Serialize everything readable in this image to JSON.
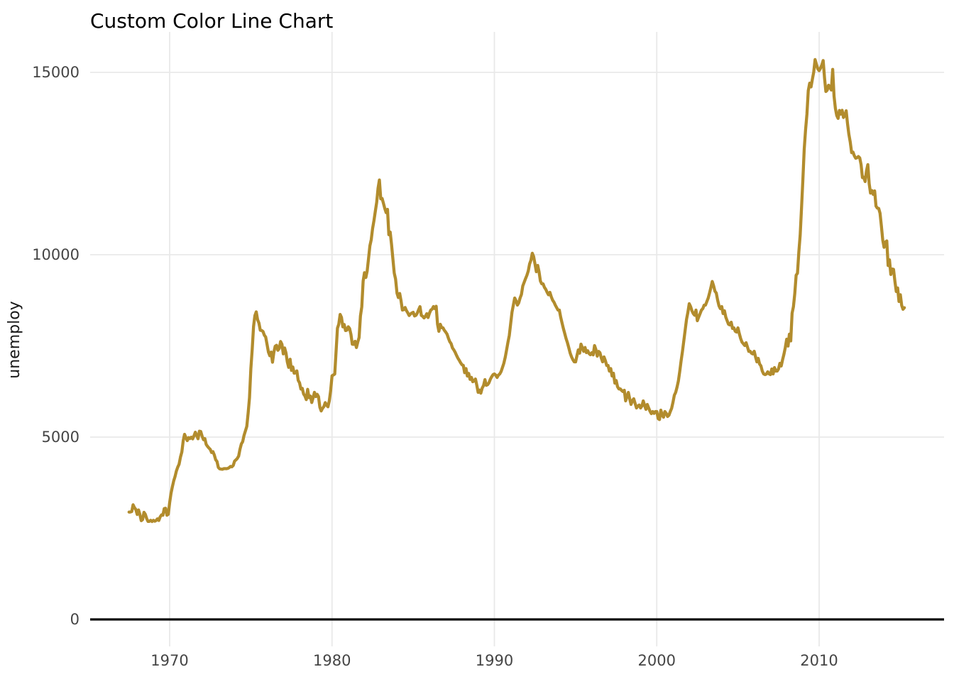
{
  "chart_data": {
    "type": "line",
    "title": "Custom Color Line Chart",
    "xlabel": "",
    "ylabel": "unemploy",
    "legend": "none",
    "grid": "major-only",
    "x_ticks": [
      1970,
      1980,
      1990,
      2000,
      2010
    ],
    "y_ticks": [
      0,
      5000,
      10000,
      15000
    ],
    "x_range_years": [
      1965.1,
      2017.6
    ],
    "y_range": [
      -760,
      16120
    ],
    "colors": {
      "line": "#B28C2D",
      "zero_line": "#0b0b0b",
      "gridline": "#E9E9E9",
      "tick_label": "#454545",
      "title": "#000000",
      "axis_title": "#1a1a1a",
      "background": "#ffffff"
    },
    "series": [
      {
        "name": "unemploy",
        "start_year": 1967,
        "start_month": 7,
        "frequency": "monthly",
        "values": [
          2944,
          2945,
          2958,
          3143,
          3066,
          3018,
          2878,
          3001,
          2877,
          2709,
          2740,
          2938,
          2883,
          2768,
          2686,
          2689,
          2715,
          2685,
          2718,
          2692,
          2712,
          2758,
          2713,
          2816,
          2868,
          2856,
          3040,
          3049,
          2856,
          2884,
          3201,
          3453,
          3635,
          3797,
          3919,
          4071,
          4175,
          4256,
          4456,
          4591,
          4898,
          5076,
          4986,
          4903,
          4987,
          4959,
          4996,
          4949,
          5035,
          5134,
          5042,
          4954,
          5161,
          5154,
          5019,
          4928,
          4959,
          4798,
          4746,
          4700,
          4663,
          4575,
          4602,
          4510,
          4381,
          4331,
          4167,
          4128,
          4122,
          4116,
          4134,
          4137,
          4133,
          4142,
          4164,
          4196,
          4184,
          4222,
          4342,
          4376,
          4415,
          4479,
          4667,
          4811,
          4876,
          5047,
          5173,
          5294,
          5662,
          6080,
          6873,
          7402,
          8031,
          8330,
          8433,
          8220,
          8127,
          7928,
          7923,
          7897,
          7794,
          7744,
          7534,
          7326,
          7230,
          7330,
          7053,
          7322,
          7490,
          7518,
          7380,
          7430,
          7620,
          7545,
          7280,
          7443,
          7307,
          7059,
          6911,
          7134,
          6829,
          6925,
          6751,
          6763,
          6815,
          6556,
          6489,
          6318,
          6337,
          6180,
          6127,
          6028,
          6309,
          6080,
          6125,
          5947,
          6077,
          6228,
          6109,
          6173,
          6109,
          5819,
          5716,
          5789,
          5836,
          5946,
          5880,
          5830,
          5993,
          6270,
          6683,
          6702,
          6729,
          7358,
          7984,
          8098,
          8363,
          8281,
          8021,
          8088,
          7921,
          7931,
          8025,
          7978,
          7818,
          7546,
          7541,
          7626,
          7455,
          7603,
          7731,
          8321,
          8573,
          9278,
          9507,
          9376,
          9556,
          9897,
          10244,
          10413,
          10718,
          10931,
          11196,
          11438,
          11823,
          12051,
          11534,
          11545,
          11408,
          11268,
          11154,
          11246,
          10548,
          10623,
          10282,
          9887,
          9499,
          9331,
          8945,
          8827,
          8937,
          8738,
          8483,
          8495,
          8555,
          8467,
          8406,
          8333,
          8375,
          8402,
          8423,
          8321,
          8339,
          8395,
          8491,
          8575,
          8336,
          8311,
          8266,
          8308,
          8383,
          8278,
          8395,
          8482,
          8510,
          8580,
          8521,
          8588,
          8093,
          7899,
          8093,
          8000,
          7996,
          7927,
          7879,
          7822,
          7712,
          7616,
          7565,
          7445,
          7392,
          7326,
          7244,
          7168,
          7108,
          7040,
          6983,
          6965,
          6765,
          6880,
          6673,
          6745,
          6582,
          6639,
          6518,
          6538,
          6593,
          6425,
          6226,
          6290,
          6205,
          6342,
          6412,
          6576,
          6420,
          6435,
          6491,
          6585,
          6656,
          6712,
          6731,
          6700,
          6634,
          6700,
          6731,
          6800,
          6910,
          7023,
          7190,
          7392,
          7600,
          7786,
          8106,
          8424,
          8618,
          8813,
          8740,
          8618,
          8680,
          8813,
          8910,
          9144,
          9241,
          9340,
          9436,
          9553,
          9747,
          9850,
          10040,
          9950,
          9747,
          9533,
          9708,
          9533,
          9280,
          9202,
          9202,
          9105,
          9050,
          8968,
          8900,
          8968,
          8850,
          8754,
          8700,
          8618,
          8550,
          8482,
          8482,
          8288,
          8130,
          7977,
          7840,
          7700,
          7587,
          7451,
          7300,
          7198,
          7121,
          7062,
          7062,
          7230,
          7392,
          7300,
          7548,
          7451,
          7350,
          7457,
          7315,
          7367,
          7290,
          7257,
          7315,
          7253,
          7509,
          7400,
          7218,
          7350,
          7315,
          7170,
          7062,
          7198,
          7100,
          6965,
          6965,
          6809,
          6880,
          6673,
          6750,
          6479,
          6550,
          6381,
          6320,
          6323,
          6280,
          6250,
          6285,
          5992,
          6110,
          6226,
          6050,
          5895,
          6000,
          6051,
          5921,
          5798,
          5850,
          5880,
          5798,
          5850,
          5992,
          5870,
          5759,
          5895,
          5800,
          5710,
          5642,
          5700,
          5650,
          5700,
          5700,
          5506,
          5481,
          5739,
          5600,
          5545,
          5700,
          5650,
          5564,
          5600,
          5700,
          5790,
          5953,
          6148,
          6226,
          6367,
          6537,
          6809,
          7100,
          7354,
          7645,
          7938,
          8229,
          8420,
          8657,
          8580,
          8463,
          8385,
          8340,
          8482,
          8190,
          8290,
          8385,
          8482,
          8521,
          8618,
          8618,
          8716,
          8810,
          8949,
          9100,
          9266,
          9150,
          9000,
          8949,
          8754,
          8600,
          8521,
          8580,
          8385,
          8463,
          8288,
          8190,
          8093,
          8074,
          8150,
          7977,
          7996,
          7900,
          7880,
          7996,
          7840,
          7704,
          7606,
          7560,
          7509,
          7587,
          7470,
          7350,
          7354,
          7300,
          7280,
          7354,
          7198,
          7062,
          7160,
          7004,
          6954,
          6809,
          6731,
          6712,
          6727,
          6790,
          6731,
          6712,
          6868,
          6731,
          6907,
          6809,
          6809,
          6870,
          7023,
          6950,
          7121,
          7270,
          7451,
          7685,
          7497,
          7822,
          7637,
          8395,
          8575,
          8937,
          9438,
          9494,
          10074,
          10538,
          11286,
          12058,
          12898,
          13426,
          13853,
          14499,
          14707,
          14601,
          14814,
          15009,
          15352,
          15219,
          15098,
          15046,
          15113,
          15202,
          15325,
          14849,
          14474,
          14512,
          14648,
          14579,
          14516,
          15081,
          14348,
          14013,
          13820,
          13737,
          13957,
          13855,
          13962,
          13763,
          13818,
          13948,
          13594,
          13302,
          13093,
          12797,
          12813,
          12713,
          12646,
          12660,
          12692,
          12656,
          12471,
          12115,
          12124,
          12005,
          12298,
          12471,
          11950,
          11689,
          11760,
          11654,
          11751,
          11335,
          11279,
          11270,
          11136,
          10787,
          10404,
          10202,
          10349,
          10380,
          9702,
          9859,
          9460,
          9608,
          9599,
          9262,
          8990,
          9090,
          8717,
          8903,
          8610,
          8504,
          8549
        ]
      }
    ]
  }
}
